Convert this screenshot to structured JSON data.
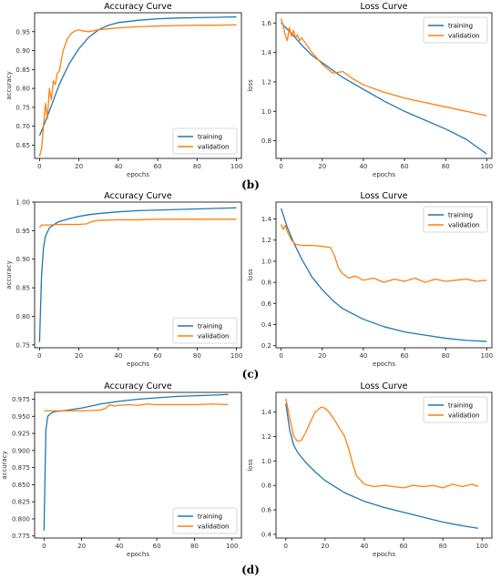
{
  "colors": {
    "training": "#1f77b4",
    "validation": "#ff7f0e",
    "axis": "#000000",
    "text": "#333333"
  },
  "panel_labels": [
    "(b)",
    "(c)",
    "(d)"
  ],
  "chart_data": [
    {
      "type": "line",
      "title": "Accuracy Curve",
      "xlabel": "epochs",
      "ylabel": "accuracy",
      "xlim": [
        -2.5,
        102.5
      ],
      "ylim": [
        0.615,
        1.0
      ],
      "xticks": [
        0,
        20,
        40,
        60,
        80,
        100
      ],
      "yticks": [
        0.65,
        0.7,
        0.75,
        0.8,
        0.85,
        0.9,
        0.95
      ],
      "ytick_labels": [
        "0.65",
        "0.70",
        "0.75",
        "0.80",
        "0.85",
        "0.90",
        "0.95"
      ],
      "legend": "lower-right",
      "grid": false,
      "series": [
        {
          "name": "training",
          "x": [
            0,
            2,
            5,
            10,
            15,
            20,
            25,
            30,
            35,
            40,
            50,
            60,
            70,
            80,
            90,
            100
          ],
          "y": [
            0.675,
            0.7,
            0.74,
            0.81,
            0.865,
            0.905,
            0.935,
            0.955,
            0.967,
            0.974,
            0.98,
            0.984,
            0.986,
            0.987,
            0.988,
            0.989
          ]
        },
        {
          "name": "validation",
          "x": [
            0,
            1,
            3,
            4,
            5,
            6,
            7,
            8,
            9,
            10,
            12,
            14,
            16,
            18,
            20,
            22,
            25,
            30,
            40,
            50,
            60,
            70,
            80,
            90,
            100
          ],
          "y": [
            0.62,
            0.64,
            0.76,
            0.72,
            0.8,
            0.77,
            0.82,
            0.81,
            0.84,
            0.845,
            0.9,
            0.93,
            0.945,
            0.952,
            0.955,
            0.952,
            0.95,
            0.955,
            0.96,
            0.963,
            0.965,
            0.966,
            0.967,
            0.967,
            0.968
          ]
        }
      ]
    },
    {
      "type": "line",
      "title": "Loss Curve",
      "xlabel": "epochs",
      "ylabel": "loss",
      "xlim": [
        -2.5,
        102.5
      ],
      "ylim": [
        0.68,
        1.67
      ],
      "xticks": [
        0,
        20,
        40,
        60,
        80,
        100
      ],
      "yticks": [
        0.8,
        1.0,
        1.2,
        1.4,
        1.6
      ],
      "ytick_labels": [
        "0.8",
        "1.0",
        "1.2",
        "1.4",
        "1.6"
      ],
      "legend": "top-right",
      "grid": false,
      "series": [
        {
          "name": "training",
          "x": [
            0,
            5,
            10,
            15,
            20,
            30,
            40,
            50,
            60,
            70,
            80,
            90,
            100
          ],
          "y": [
            1.6,
            1.53,
            1.45,
            1.38,
            1.33,
            1.23,
            1.15,
            1.07,
            1.0,
            0.94,
            0.88,
            0.81,
            0.71
          ]
        },
        {
          "name": "validation",
          "x": [
            0,
            1,
            2,
            3,
            4,
            5,
            6,
            7,
            8,
            9,
            10,
            12,
            15,
            20,
            25,
            30,
            35,
            40,
            50,
            60,
            70,
            80,
            90,
            100
          ],
          "y": [
            1.63,
            1.58,
            1.52,
            1.48,
            1.57,
            1.51,
            1.55,
            1.5,
            1.52,
            1.48,
            1.5,
            1.46,
            1.4,
            1.32,
            1.26,
            1.27,
            1.22,
            1.18,
            1.13,
            1.09,
            1.06,
            1.03,
            1.0,
            0.97
          ]
        }
      ]
    },
    {
      "type": "line",
      "title": "Accuracy Curve",
      "xlabel": "epochs",
      "ylabel": "accuracy",
      "xlim": [
        -2.5,
        102.5
      ],
      "ylim": [
        0.745,
        1.0
      ],
      "xticks": [
        0,
        20,
        40,
        60,
        80,
        100
      ],
      "yticks": [
        0.75,
        0.8,
        0.85,
        0.9,
        0.95,
        1.0
      ],
      "ytick_labels": [
        "0.75",
        "0.80",
        "0.85",
        "0.90",
        "0.95",
        "1.00"
      ],
      "legend": "lower-right",
      "grid": false,
      "series": [
        {
          "name": "training",
          "x": [
            0,
            1,
            2,
            3,
            5,
            8,
            10,
            15,
            20,
            25,
            30,
            40,
            50,
            60,
            70,
            80,
            90,
            100
          ],
          "y": [
            0.755,
            0.87,
            0.92,
            0.94,
            0.955,
            0.962,
            0.966,
            0.971,
            0.975,
            0.978,
            0.98,
            0.983,
            0.985,
            0.986,
            0.987,
            0.988,
            0.989,
            0.99
          ]
        },
        {
          "name": "validation",
          "x": [
            0,
            1,
            5,
            10,
            15,
            20,
            24,
            26,
            28,
            30,
            40,
            50,
            60,
            70,
            80,
            90,
            100
          ],
          "y": [
            0.955,
            0.96,
            0.96,
            0.961,
            0.961,
            0.961,
            0.962,
            0.965,
            0.967,
            0.968,
            0.969,
            0.969,
            0.97,
            0.97,
            0.97,
            0.97,
            0.97
          ]
        }
      ]
    },
    {
      "type": "line",
      "title": "Loss Curve",
      "xlabel": "epochs",
      "ylabel": "loss",
      "xlim": [
        -2.5,
        102.5
      ],
      "ylim": [
        0.18,
        1.56
      ],
      "xticks": [
        0,
        20,
        40,
        60,
        80,
        100
      ],
      "yticks": [
        0.2,
        0.4,
        0.6,
        0.8,
        1.0,
        1.2,
        1.4
      ],
      "ytick_labels": [
        "0.2",
        "0.4",
        "0.6",
        "0.8",
        "1.0",
        "1.2",
        "1.4"
      ],
      "legend": "top-right",
      "grid": false,
      "series": [
        {
          "name": "training",
          "x": [
            0,
            3,
            6,
            10,
            15,
            20,
            25,
            30,
            40,
            50,
            60,
            70,
            80,
            90,
            100
          ],
          "y": [
            1.5,
            1.32,
            1.18,
            1.02,
            0.85,
            0.73,
            0.63,
            0.55,
            0.45,
            0.38,
            0.33,
            0.3,
            0.27,
            0.25,
            0.24
          ]
        },
        {
          "name": "validation",
          "x": [
            0,
            1,
            2,
            3,
            5,
            7,
            10,
            15,
            20,
            24,
            26,
            28,
            30,
            33,
            36,
            40,
            45,
            50,
            55,
            60,
            65,
            70,
            75,
            80,
            85,
            90,
            95,
            100
          ],
          "y": [
            1.35,
            1.3,
            1.34,
            1.28,
            1.2,
            1.16,
            1.15,
            1.15,
            1.14,
            1.13,
            1.05,
            0.93,
            0.88,
            0.84,
            0.86,
            0.82,
            0.84,
            0.8,
            0.83,
            0.81,
            0.84,
            0.8,
            0.83,
            0.81,
            0.82,
            0.83,
            0.81,
            0.82
          ]
        }
      ]
    },
    {
      "type": "line",
      "title": "Accuracy Curve",
      "xlabel": "epochs",
      "ylabel": "accuracy",
      "xlim": [
        -5,
        105
      ],
      "ylim": [
        0.772,
        0.985
      ],
      "xticks": [
        0,
        20,
        40,
        60,
        80,
        100
      ],
      "yticks": [
        0.775,
        0.8,
        0.825,
        0.85,
        0.875,
        0.9,
        0.925,
        0.95,
        0.975
      ],
      "ytick_labels": [
        "0.775",
        "0.800",
        "0.825",
        "0.850",
        "0.875",
        "0.900",
        "0.925",
        "0.950",
        "0.975"
      ],
      "legend": "lower-right",
      "grid": false,
      "series": [
        {
          "name": "training",
          "x": [
            0,
            1,
            2,
            4,
            6,
            10,
            20,
            30,
            40,
            50,
            60,
            70,
            80,
            90,
            98
          ],
          "y": [
            0.783,
            0.93,
            0.95,
            0.955,
            0.957,
            0.958,
            0.962,
            0.968,
            0.972,
            0.975,
            0.977,
            0.979,
            0.98,
            0.981,
            0.982
          ]
        },
        {
          "name": "validation",
          "x": [
            0,
            1,
            5,
            10,
            20,
            30,
            33,
            35,
            37,
            40,
            45,
            50,
            55,
            60,
            70,
            80,
            90,
            98
          ],
          "y": [
            0.958,
            0.958,
            0.958,
            0.958,
            0.958,
            0.959,
            0.962,
            0.967,
            0.965,
            0.966,
            0.967,
            0.966,
            0.968,
            0.967,
            0.967,
            0.967,
            0.968,
            0.967
          ]
        }
      ]
    },
    {
      "type": "line",
      "title": "Loss Curve",
      "xlabel": "epochs",
      "ylabel": "loss",
      "xlim": [
        -5,
        105
      ],
      "ylim": [
        0.37,
        1.56
      ],
      "xticks": [
        0,
        20,
        40,
        60,
        80,
        100
      ],
      "yticks": [
        0.4,
        0.6,
        0.8,
        1.0,
        1.2,
        1.4
      ],
      "ytick_labels": [
        "0.4",
        "0.6",
        "0.8",
        "1.0",
        "1.2",
        "1.4"
      ],
      "legend": "top-right",
      "grid": false,
      "series": [
        {
          "name": "training",
          "x": [
            0,
            2,
            4,
            6,
            10,
            15,
            20,
            25,
            30,
            40,
            50,
            60,
            70,
            80,
            90,
            98
          ],
          "y": [
            1.47,
            1.25,
            1.13,
            1.07,
            0.99,
            0.91,
            0.84,
            0.79,
            0.74,
            0.67,
            0.62,
            0.58,
            0.54,
            0.5,
            0.47,
            0.45
          ]
        },
        {
          "name": "validation",
          "x": [
            0,
            2,
            4,
            6,
            8,
            10,
            12,
            15,
            18,
            20,
            22,
            25,
            28,
            30,
            32,
            34,
            36,
            40,
            45,
            50,
            55,
            60,
            65,
            70,
            75,
            80,
            85,
            90,
            95,
            98
          ],
          "y": [
            1.51,
            1.35,
            1.2,
            1.16,
            1.17,
            1.23,
            1.3,
            1.4,
            1.44,
            1.43,
            1.4,
            1.33,
            1.25,
            1.2,
            1.1,
            0.98,
            0.88,
            0.81,
            0.79,
            0.8,
            0.79,
            0.78,
            0.8,
            0.79,
            0.8,
            0.78,
            0.81,
            0.79,
            0.81,
            0.79
          ]
        }
      ]
    }
  ]
}
